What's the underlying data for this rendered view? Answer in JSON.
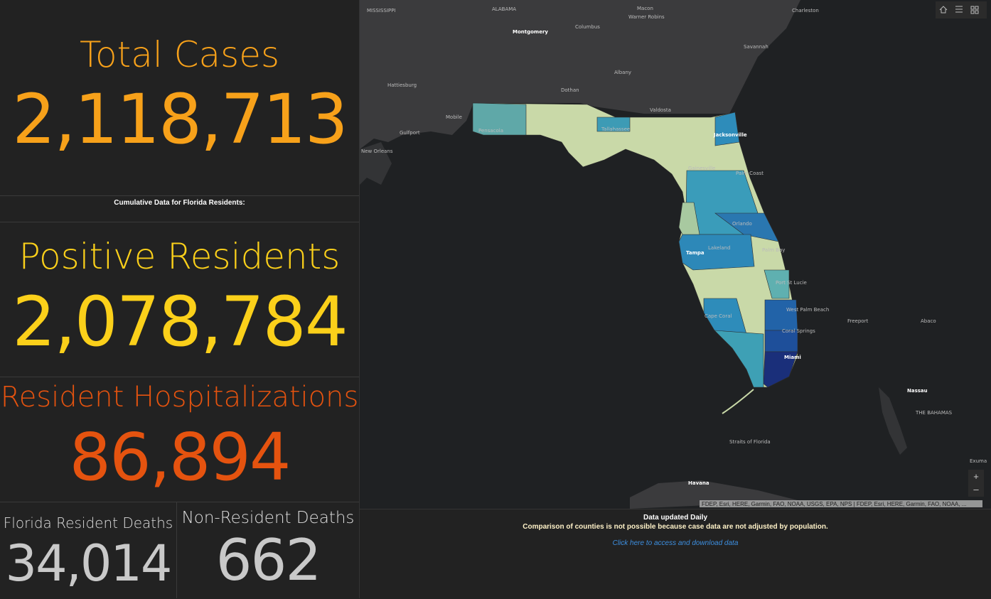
{
  "stats": {
    "total_cases": {
      "title": "Total Cases",
      "value": "2,118,713"
    },
    "note": "Cumulative Data for Florida Residents:",
    "positive_residents": {
      "title": "Positive Residents",
      "value": "2,078,784"
    },
    "hospitalizations": {
      "title": "Resident Hospitalizations",
      "value": "86,894"
    },
    "resident_deaths": {
      "title": "Florida Resident Deaths",
      "value": "34,014"
    },
    "nonresident_deaths": {
      "title": "Non-Resident Deaths",
      "value": "662"
    }
  },
  "map": {
    "labels": [
      "MISSISSIPPI",
      "ALABAMA",
      "Montgomery",
      "Columbus",
      "Macon",
      "Warner Robins",
      "Charleston",
      "Savannah",
      "Albany",
      "Hattiesburg",
      "Dothan",
      "Valdosta",
      "Mobile",
      "Gulfport",
      "New Orleans",
      "Pensacola",
      "Tallahassee",
      "Jacksonville",
      "Gainesville",
      "Palm Coast",
      "Orlando",
      "Lakeland",
      "Tampa",
      "Palm Bay",
      "Port St Lucie",
      "West Palm Beach",
      "Cape Coral",
      "Coral Springs",
      "Miami",
      "Freeport",
      "Abaco",
      "Nassau",
      "THE BAHAMAS",
      "Straits of Florida",
      "Havana",
      "Exuma"
    ],
    "attribution": "FDEP, Esri, HERE, Garmin, FAO, NOAA, USGS, EPA, NPS | FDEP, Esri, HERE, Garmin, FAO, NOAA, ...",
    "zoom_in": "+",
    "zoom_out": "–"
  },
  "footer": {
    "updated": "Data updated Daily",
    "disclaimer": "Comparison of counties is not possible because case data are not adjusted by population.",
    "link": "Click here to access and download data"
  }
}
